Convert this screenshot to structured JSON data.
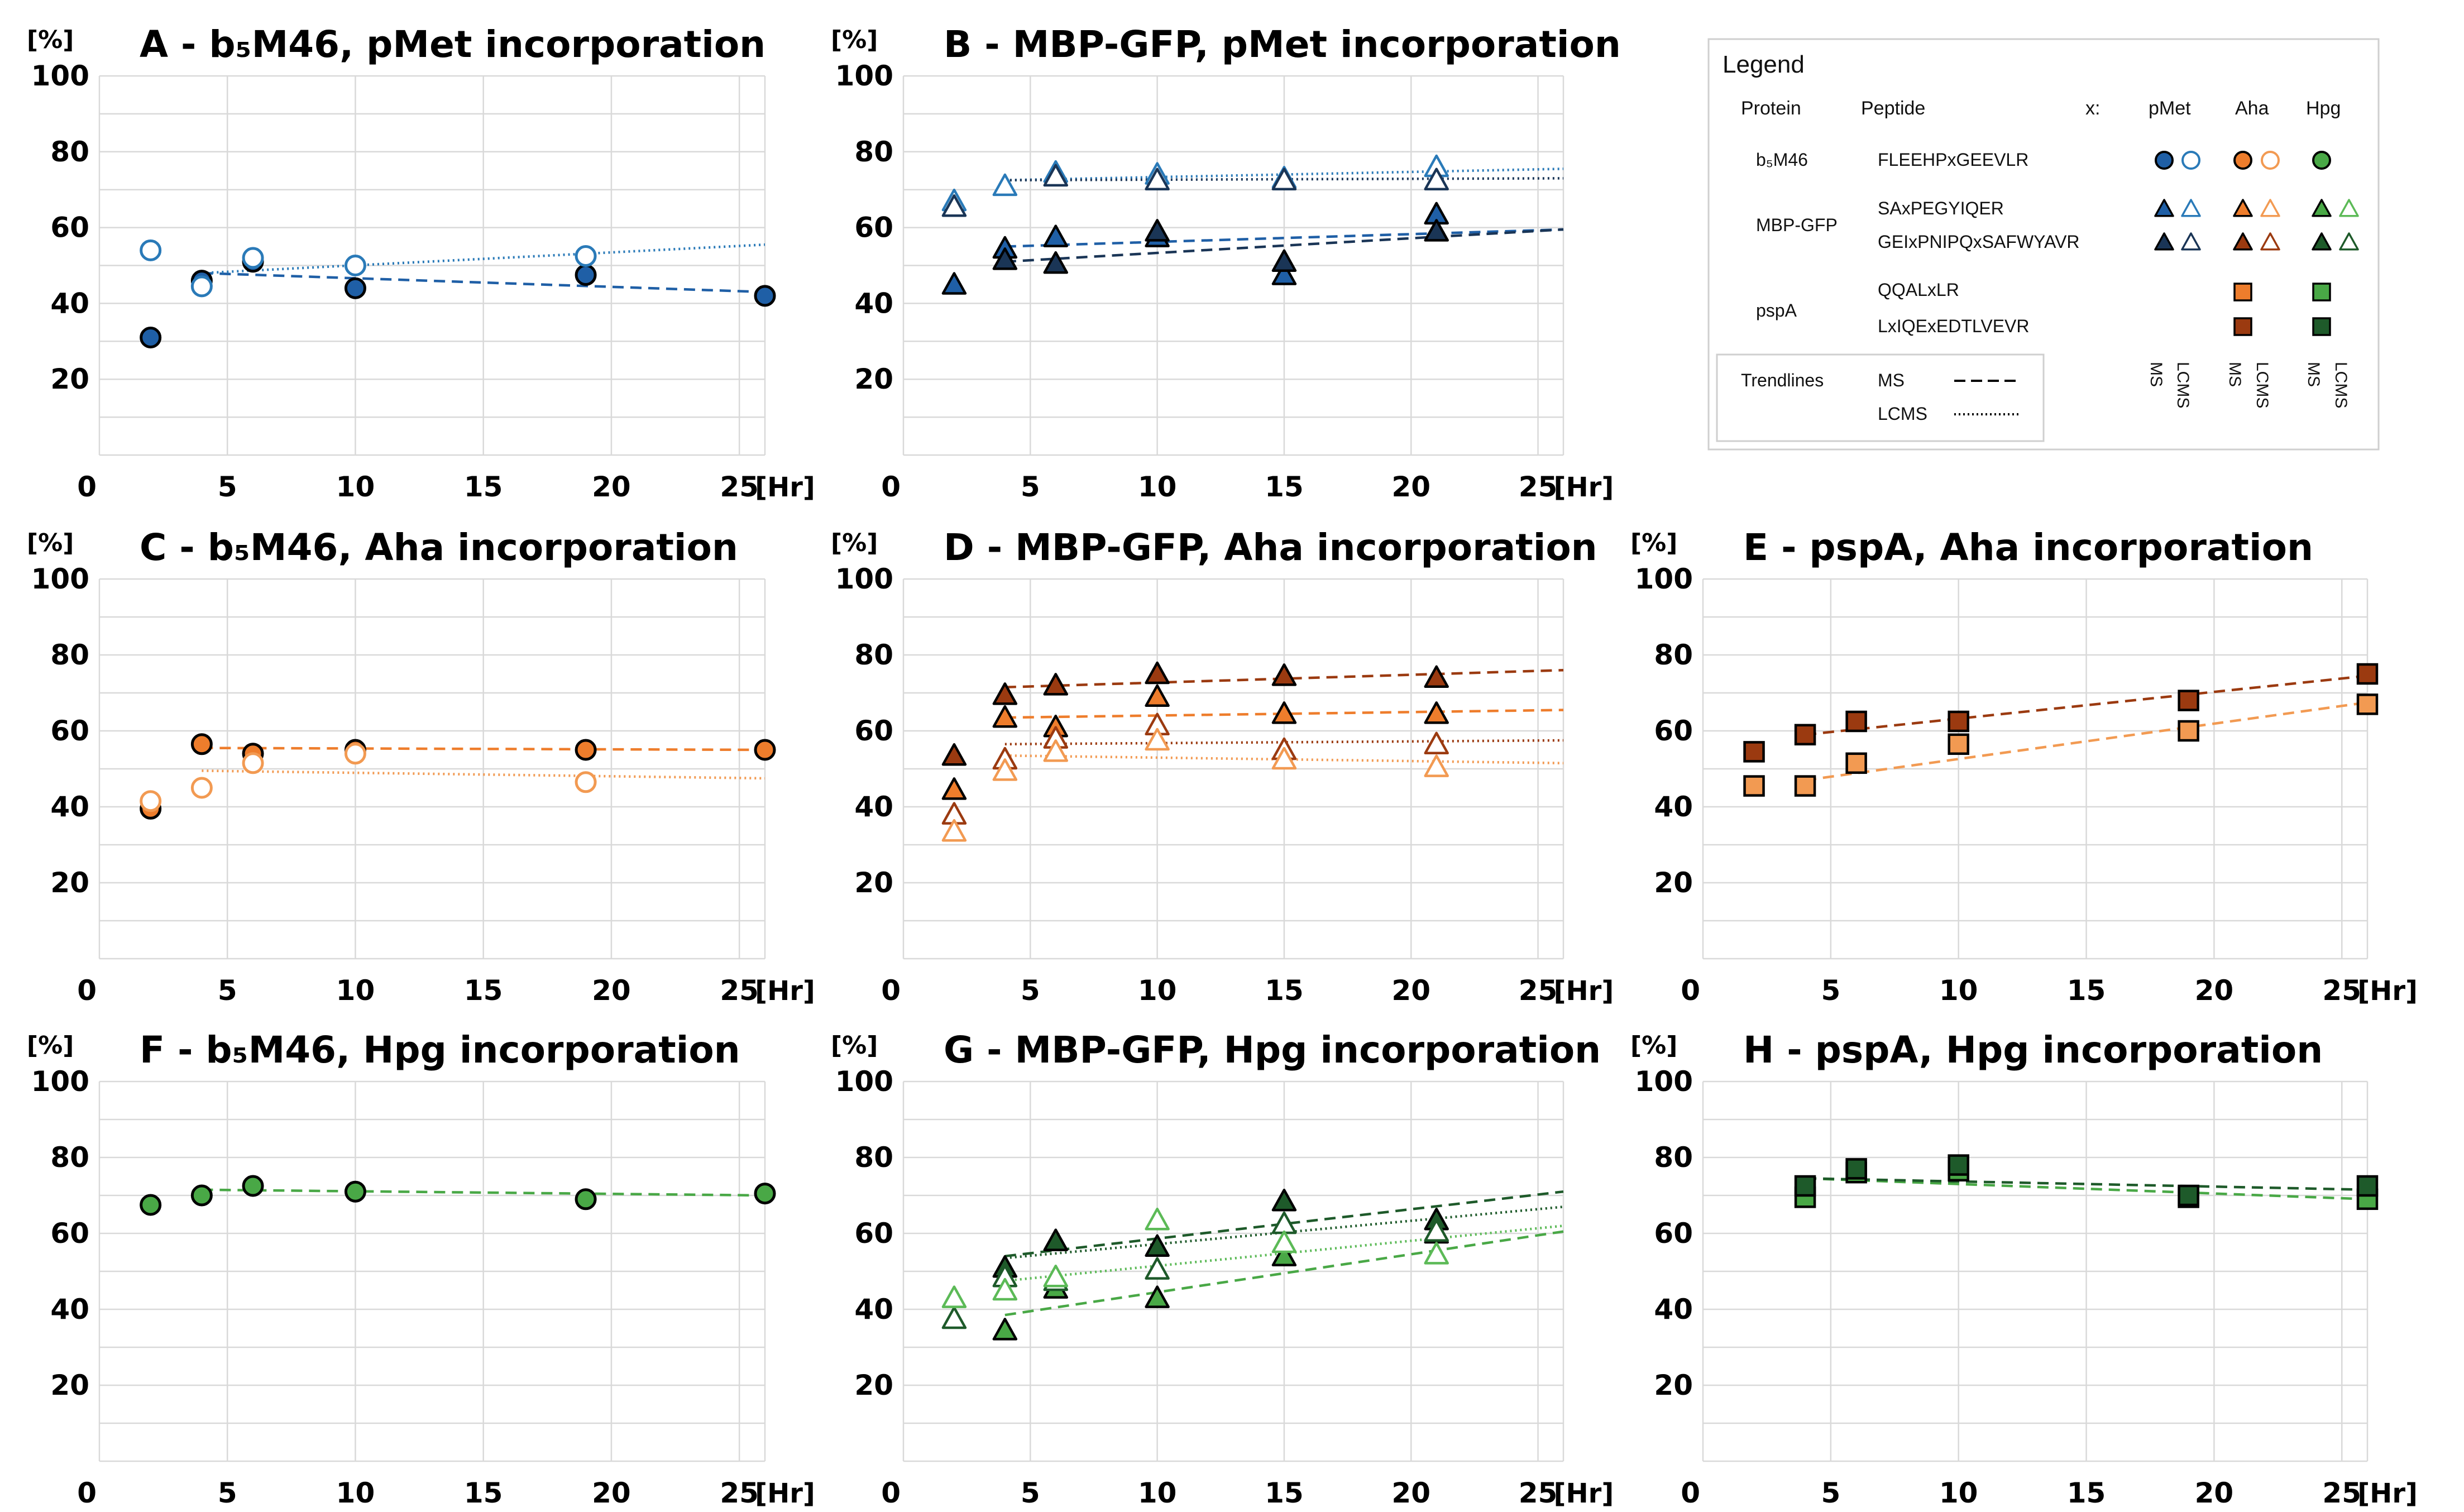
{
  "colors": {
    "pmet_ms": "#1f5fa6",
    "pmet_lcms": "#2a7ab8",
    "pmet_tri_ms": "#1a3556",
    "pmet_tri_lcms": "#2a7ab8",
    "aha_ms": "#ee7d2c",
    "aha_dark": "#9b3a10",
    "aha_lcms": "#f29a52",
    "hpg_ms": "#49a846",
    "hpg_dark": "#1e5a2a",
    "hpg_lcms": "#5cba57",
    "grid": "#d9d9d9",
    "edge": "#000000"
  },
  "legend": {
    "title": "Legend",
    "headers": {
      "protein": "Protein",
      "peptide": "Peptide",
      "x": "x:",
      "pmet": "pMet",
      "aha": "Aha",
      "hpg": "Hpg"
    },
    "proteins": [
      {
        "name": "b₅M46",
        "peptides": [
          "FLEEHPxGEEVLR"
        ]
      },
      {
        "name": "MBP-GFP",
        "peptides": [
          "SAxPEGYIQER",
          "GEIxPNIPQxSAFWYAVR"
        ]
      },
      {
        "name": "pspA",
        "peptides": [
          "QQALxLR",
          "LxIQExEDTLVEVR"
        ]
      }
    ],
    "trendlines": {
      "label": "Trendlines",
      "ms": "MS",
      "lcms": "LCMS"
    },
    "column_labels": [
      "MS",
      "LCMS",
      "MS",
      "LCMS",
      "MS",
      "LCMS"
    ]
  },
  "chart_data": [
    {
      "panel": "A",
      "title": "A - b₅M46, pMet incorporation",
      "type": "scatter",
      "xlabel": "[Hr]",
      "ylabel": "[%]",
      "xlim": [
        0,
        26
      ],
      "ylim": [
        0,
        100
      ],
      "xticks": [
        0,
        5,
        10,
        15,
        20,
        25
      ],
      "yticks": [
        20,
        40,
        60,
        80,
        100
      ],
      "series": [
        {
          "name": "FLEEHPxGEEVLR pMet MS",
          "marker": "circle",
          "filled": true,
          "color": "pmet_ms",
          "x": [
            2,
            4,
            6,
            10,
            19,
            26
          ],
          "y": [
            31,
            46,
            51,
            44,
            47.5,
            42
          ],
          "trend": {
            "style": "dashed",
            "x": [
              4,
              26
            ],
            "y": [
              48,
              43
            ]
          }
        },
        {
          "name": "FLEEHPxGEEVLR pMet LCMS",
          "marker": "circle",
          "filled": false,
          "color": "pmet_lcms",
          "x": [
            2,
            4,
            6,
            10,
            19
          ],
          "y": [
            54,
            44.5,
            52,
            50,
            52.5
          ],
          "trend": {
            "style": "dotted",
            "x": [
              4,
              26
            ],
            "y": [
              48,
              55.5
            ]
          }
        }
      ]
    },
    {
      "panel": "B",
      "title": "B - MBP-GFP, pMet incorporation",
      "type": "scatter",
      "xlabel": "[Hr]",
      "ylabel": "[%]",
      "xlim": [
        0,
        26
      ],
      "ylim": [
        0,
        100
      ],
      "xticks": [
        0,
        5,
        10,
        15,
        20,
        25
      ],
      "yticks": [
        20,
        40,
        60,
        80,
        100
      ],
      "series": [
        {
          "name": "SAxPEGYIQER pMet MS",
          "marker": "triangle",
          "filled": true,
          "color": "pmet_ms",
          "x": [
            2,
            4,
            6,
            10,
            15,
            21
          ],
          "y": [
            45,
            54.5,
            57.5,
            57.5,
            47.5,
            63.5
          ],
          "trend": {
            "style": "dashed",
            "x": [
              4,
              26
            ],
            "y": [
              55,
              59.5
            ]
          }
        },
        {
          "name": "GEIxPNIPQxSAFWYAVR pMet MS",
          "marker": "triangle",
          "filled": true,
          "color": "pmet_tri_ms",
          "x": [
            4,
            6,
            10,
            15,
            21
          ],
          "y": [
            51.5,
            50.5,
            59,
            51,
            59
          ],
          "trend": {
            "style": "dashed",
            "x": [
              4,
              26
            ],
            "y": [
              51,
              59.5
            ]
          }
        },
        {
          "name": "SAxPEGYIQER pMet LCMS",
          "marker": "triangle",
          "filled": false,
          "color": "pmet_tri_lcms",
          "x": [
            2,
            4,
            6,
            10,
            15,
            21
          ],
          "y": [
            67,
            71,
            74.5,
            74,
            73,
            76
          ],
          "trend": {
            "style": "dotted",
            "x": [
              4,
              26
            ],
            "y": [
              72.5,
              75.5
            ]
          }
        },
        {
          "name": "GEIxPNIPQxSAFWYAVR pMet LCMS",
          "marker": "triangle",
          "filled": false,
          "color": "pmet_tri_ms",
          "x": [
            2,
            6,
            10,
            15,
            21
          ],
          "y": [
            65.5,
            73.5,
            72.5,
            72.5,
            72.5
          ],
          "trend": {
            "style": "dotted",
            "x": [
              4,
              26
            ],
            "y": [
              72.5,
              73
            ]
          }
        }
      ]
    },
    {
      "panel": "C",
      "title": "C - b₅M46, Aha incorporation",
      "type": "scatter",
      "xlabel": "[Hr]",
      "ylabel": "[%]",
      "xlim": [
        0,
        26
      ],
      "ylim": [
        0,
        100
      ],
      "xticks": [
        0,
        5,
        10,
        15,
        20,
        25
      ],
      "yticks": [
        20,
        40,
        60,
        80,
        100
      ],
      "series": [
        {
          "name": "FLEEHPxGEEVLR Aha MS",
          "marker": "circle",
          "filled": true,
          "color": "aha_ms",
          "x": [
            2,
            4,
            6,
            10,
            19,
            26
          ],
          "y": [
            39.5,
            56.5,
            54,
            55,
            55,
            55
          ],
          "trend": {
            "style": "dashed",
            "x": [
              4,
              26
            ],
            "y": [
              55.5,
              55
            ]
          }
        },
        {
          "name": "FLEEHPxGEEVLR Aha LCMS",
          "marker": "circle",
          "filled": false,
          "color": "aha_lcms",
          "x": [
            2,
            4,
            6,
            10,
            19
          ],
          "y": [
            41.5,
            45,
            51.5,
            54,
            46.5
          ],
          "trend": {
            "style": "dotted",
            "x": [
              4,
              26
            ],
            "y": [
              49.5,
              47.5
            ]
          }
        }
      ]
    },
    {
      "panel": "D",
      "title": "D - MBP-GFP, Aha incorporation",
      "type": "scatter",
      "xlabel": "[Hr]",
      "ylabel": "[%]",
      "xlim": [
        0,
        26
      ],
      "ylim": [
        0,
        100
      ],
      "xticks": [
        0,
        5,
        10,
        15,
        20,
        25
      ],
      "yticks": [
        20,
        40,
        60,
        80,
        100
      ],
      "series": [
        {
          "name": "GEIxPNIPQxSAFWYAVR Aha MS",
          "marker": "triangle",
          "filled": true,
          "color": "aha_dark",
          "x": [
            2,
            4,
            6,
            10,
            15,
            21
          ],
          "y": [
            53.5,
            69.5,
            72,
            75,
            74.5,
            74
          ],
          "trend": {
            "style": "dashed",
            "x": [
              4,
              26
            ],
            "y": [
              71.5,
              76
            ]
          }
        },
        {
          "name": "SAxPEGYIQER Aha MS",
          "marker": "triangle",
          "filled": true,
          "color": "aha_ms",
          "x": [
            2,
            4,
            6,
            10,
            15,
            21
          ],
          "y": [
            44.5,
            63.5,
            61,
            69,
            64.5,
            64.5
          ],
          "trend": {
            "style": "dashed",
            "x": [
              4,
              26
            ],
            "y": [
              63.5,
              65.5
            ]
          }
        },
        {
          "name": "GEIxPNIPQxSAFWYAVR Aha LCMS",
          "marker": "triangle",
          "filled": false,
          "color": "aha_dark",
          "x": [
            2,
            4,
            6,
            10,
            15,
            21
          ],
          "y": [
            38,
            52.5,
            58,
            61.5,
            55,
            56.5
          ],
          "trend": {
            "style": "dotted",
            "x": [
              4,
              26
            ],
            "y": [
              56.5,
              57.5
            ]
          }
        },
        {
          "name": "SAxPEGYIQER Aha LCMS",
          "marker": "triangle",
          "filled": false,
          "color": "aha_lcms",
          "x": [
            2,
            4,
            6,
            10,
            15,
            21
          ],
          "y": [
            33.5,
            49.5,
            54.5,
            57.5,
            52.5,
            50.5
          ],
          "trend": {
            "style": "dotted",
            "x": [
              4,
              26
            ],
            "y": [
              53.5,
              51.5
            ]
          }
        }
      ]
    },
    {
      "panel": "E",
      "title": "E - pspA, Aha incorporation",
      "type": "scatter",
      "xlabel": "[Hr]",
      "ylabel": "[%]",
      "xlim": [
        0,
        26
      ],
      "ylim": [
        0,
        100
      ],
      "xticks": [
        0,
        5,
        10,
        15,
        20,
        25
      ],
      "yticks": [
        20,
        40,
        60,
        80,
        100
      ],
      "series": [
        {
          "name": "LxIQExEDTLVEVR Aha MS",
          "marker": "square",
          "filled": true,
          "color": "aha_dark",
          "x": [
            2,
            4,
            6,
            10,
            19,
            26
          ],
          "y": [
            54.5,
            59,
            62.5,
            62.5,
            68,
            75
          ],
          "trend": {
            "style": "dashed",
            "x": [
              4,
              26
            ],
            "y": [
              59,
              74.5
            ]
          }
        },
        {
          "name": "QQALxLR Aha MS",
          "marker": "square",
          "filled": true,
          "color": "aha_lcms",
          "x": [
            2,
            4,
            6,
            10,
            19,
            26
          ],
          "y": [
            45.5,
            45.5,
            51.5,
            56.5,
            60,
            67
          ],
          "trend": {
            "style": "dashed",
            "x": [
              4,
              26
            ],
            "y": [
              47,
              67.5
            ]
          }
        }
      ]
    },
    {
      "panel": "F",
      "title": "F - b₅M46, Hpg incorporation",
      "type": "scatter",
      "xlabel": "[Hr]",
      "ylabel": "[%]",
      "xlim": [
        0,
        26
      ],
      "ylim": [
        0,
        100
      ],
      "xticks": [
        0,
        5,
        10,
        15,
        20,
        25
      ],
      "yticks": [
        20,
        40,
        60,
        80,
        100
      ],
      "series": [
        {
          "name": "FLEEHPxGEEVLR Hpg MS",
          "marker": "circle",
          "filled": true,
          "color": "hpg_ms",
          "x": [
            2,
            4,
            6,
            10,
            19,
            26
          ],
          "y": [
            67.5,
            70,
            72.5,
            71,
            69,
            70.5
          ],
          "trend": {
            "style": "dashed",
            "x": [
              4,
              26
            ],
            "y": [
              71.5,
              70
            ]
          }
        }
      ]
    },
    {
      "panel": "G",
      "title": "G - MBP-GFP, Hpg incorporation",
      "type": "scatter",
      "xlabel": "[Hr]",
      "ylabel": "[%]",
      "xlim": [
        0,
        26
      ],
      "ylim": [
        0,
        100
      ],
      "xticks": [
        0,
        5,
        10,
        15,
        20,
        25
      ],
      "yticks": [
        20,
        40,
        60,
        80,
        100
      ],
      "series": [
        {
          "name": "GEIxPNIPQxSAFWYAVR Hpg MS",
          "marker": "triangle",
          "filled": true,
          "color": "hpg_dark",
          "x": [
            4,
            6,
            10,
            15,
            21
          ],
          "y": [
            51,
            58,
            56.5,
            68.5,
            63.5
          ],
          "trend": {
            "style": "dashed",
            "x": [
              4,
              26
            ],
            "y": [
              54,
              71
            ]
          }
        },
        {
          "name": "SAxPEGYIQER Hpg MS",
          "marker": "triangle",
          "filled": true,
          "color": "hpg_ms",
          "x": [
            4,
            6,
            10,
            15,
            21
          ],
          "y": [
            34.5,
            45.5,
            43,
            54,
            60
          ],
          "trend": {
            "style": "dashed",
            "x": [
              4,
              26
            ],
            "y": [
              38.5,
              60.5
            ]
          }
        },
        {
          "name": "GEIxPNIPQxSAFWYAVR Hpg LCMS",
          "marker": "triangle",
          "filled": false,
          "color": "hpg_dark",
          "x": [
            2,
            4,
            6,
            10,
            15,
            21
          ],
          "y": [
            37.5,
            48.5,
            47.5,
            50.5,
            62.5,
            60.5
          ],
          "trend": {
            "style": "dotted",
            "x": [
              4,
              26
            ],
            "y": [
              53.5,
              67
            ]
          }
        },
        {
          "name": "SAxPEGYIQER Hpg LCMS",
          "marker": "triangle",
          "filled": false,
          "color": "hpg_lcms",
          "x": [
            2,
            4,
            6,
            10,
            15,
            21
          ],
          "y": [
            43,
            45,
            48.5,
            63.5,
            57.5,
            54.5
          ],
          "trend": {
            "style": "dotted",
            "x": [
              4,
              26
            ],
            "y": [
              47.5,
              62
            ]
          }
        }
      ]
    },
    {
      "panel": "H",
      "title": "H - pspA, Hpg incorporation",
      "type": "scatter",
      "xlabel": "[Hr]",
      "ylabel": "[%]",
      "xlim": [
        0,
        26
      ],
      "ylim": [
        0,
        100
      ],
      "xticks": [
        0,
        5,
        10,
        15,
        20,
        25
      ],
      "yticks": [
        20,
        40,
        60,
        80,
        100
      ],
      "series": [
        {
          "name": "QQALxLR Hpg MS",
          "marker": "square",
          "filled": true,
          "color": "hpg_ms",
          "x": [
            4,
            6,
            10,
            19,
            26
          ],
          "y": [
            69.5,
            76,
            76.5,
            69.5,
            69
          ],
          "trend": {
            "style": "dashed",
            "x": [
              4,
              26
            ],
            "y": [
              74.5,
              69
            ]
          }
        },
        {
          "name": "LxIQExEDTLVEVR Hpg MS",
          "marker": "square",
          "filled": true,
          "color": "hpg_dark",
          "x": [
            4,
            6,
            10,
            19,
            26
          ],
          "y": [
            72.5,
            77,
            78,
            70,
            72.5
          ],
          "trend": {
            "style": "dashed",
            "x": [
              4,
              26
            ],
            "y": [
              74.5,
              71.5
            ]
          }
        }
      ]
    }
  ]
}
